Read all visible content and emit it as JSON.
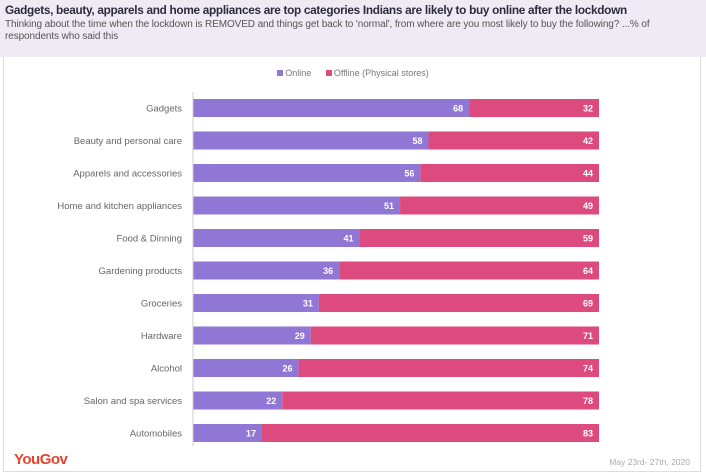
{
  "title": "Gadgets, beauty, apparels and home appliances are top categories Indians are likely to buy online after the lockdown",
  "subtitle": "Thinking about the time when the lockdown is REMOVED and things get back to 'normal', from where are you most likely to buy the following? ...% of respondents who said this",
  "footer": {
    "logo": "YouGov",
    "date": "May 23rd- 27th, 2020"
  },
  "chart_data": {
    "type": "bar",
    "orientation": "horizontal-stacked-100",
    "legend_position": "top",
    "grid": false,
    "xlim": [
      0,
      100
    ],
    "categories": [
      "Gadgets",
      "Beauty and personal care",
      "Apparels and accessories",
      "Home and kitchen appliances",
      "Food & Dinning",
      "Gardening products",
      "Groceries",
      "Hardware",
      "Alcohol",
      "Salon and spa services",
      "Automobiles"
    ],
    "series": [
      {
        "name": "Online",
        "color": "#9077d6",
        "values": [
          68,
          58,
          56,
          51,
          41,
          36,
          31,
          29,
          26,
          22,
          17
        ]
      },
      {
        "name": "Offline (Physical stores)",
        "color": "#dd4a7e",
        "values": [
          32,
          42,
          44,
          49,
          59,
          64,
          69,
          71,
          74,
          78,
          83
        ]
      }
    ]
  }
}
